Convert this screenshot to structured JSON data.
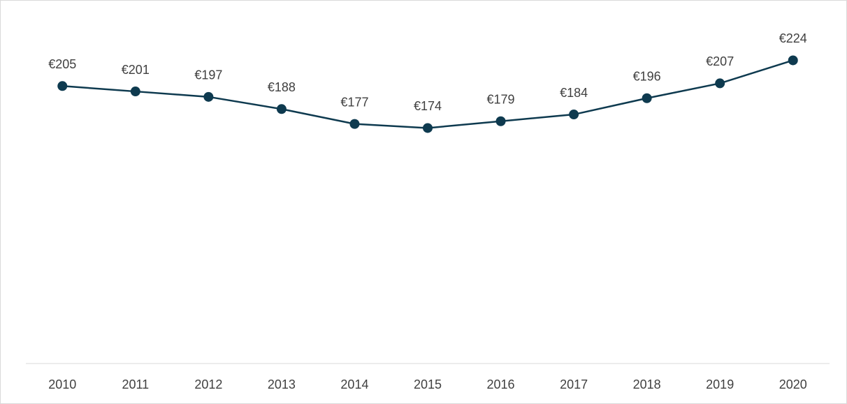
{
  "chart_data": {
    "type": "line",
    "categories": [
      "2010",
      "2011",
      "2012",
      "2013",
      "2014",
      "2015",
      "2016",
      "2017",
      "2018",
      "2019",
      "2020"
    ],
    "series": [
      {
        "color": "#0e3a4f",
        "values": [
          205,
          201,
          197,
          188,
          177,
          174,
          179,
          184,
          196,
          207,
          224
        ],
        "value_labels": [
          "€205",
          "€201",
          "€197",
          "€188",
          "€177",
          "€174",
          "€179",
          "€184",
          "€196",
          "€207",
          "€224"
        ]
      }
    ],
    "ylim": [
      0,
      250
    ],
    "grid": false
  }
}
